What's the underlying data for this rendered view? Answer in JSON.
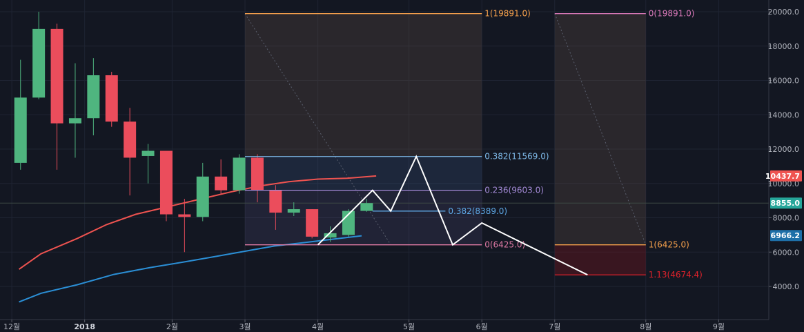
{
  "chart_data": {
    "type": "candlestick",
    "x_axis": {
      "ticks": [
        {
          "label": "12월",
          "t": -0.2
        },
        {
          "label": "2018",
          "t": 0.8,
          "bold": true
        },
        {
          "label": "2월",
          "t": 2.0
        },
        {
          "label": "3월",
          "t": 3.0
        },
        {
          "label": "4월",
          "t": 4.0
        },
        {
          "label": "5월",
          "t": 5.25
        },
        {
          "label": "6월",
          "t": 6.25
        },
        {
          "label": "7월",
          "t": 7.25
        },
        {
          "label": "8월",
          "t": 8.5
        },
        {
          "label": "9월",
          "t": 9.5
        }
      ]
    },
    "y_axis": {
      "ticks": [
        4000,
        6000,
        8000,
        10000,
        12000,
        14000,
        16000,
        18000,
        20000
      ],
      "tick_labels": [
        "4000.0",
        "6000.0",
        "8000.0",
        "10000.0",
        "12000.0",
        "14000.0",
        "16000.0",
        "18000.0",
        "20000.0"
      ],
      "ylim": [
        2000,
        20600
      ]
    },
    "candles": [
      {
        "t": -0.08,
        "o": 11200,
        "h": 17200,
        "l": 10800,
        "c": 15000
      },
      {
        "t": 0.17,
        "o": 15000,
        "h": 20000,
        "l": 14900,
        "c": 19000
      },
      {
        "t": 0.42,
        "o": 19000,
        "h": 19300,
        "l": 10800,
        "c": 13500
      },
      {
        "t": 0.67,
        "o": 13500,
        "h": 17000,
        "l": 11500,
        "c": 13800
      },
      {
        "t": 0.92,
        "o": 13800,
        "h": 17300,
        "l": 12800,
        "c": 16300
      },
      {
        "t": 1.17,
        "o": 16300,
        "h": 16500,
        "l": 13300,
        "c": 13600
      },
      {
        "t": 1.42,
        "o": 13600,
        "h": 14400,
        "l": 9300,
        "c": 11500
      },
      {
        "t": 1.67,
        "o": 11600,
        "h": 12300,
        "l": 10000,
        "c": 11900
      },
      {
        "t": 1.92,
        "o": 11900,
        "h": 11900,
        "l": 7800,
        "c": 8200
      },
      {
        "t": 2.17,
        "o": 8200,
        "h": 9100,
        "l": 6000,
        "c": 8050
      },
      {
        "t": 2.42,
        "o": 8050,
        "h": 11200,
        "l": 7800,
        "c": 10400
      },
      {
        "t": 2.67,
        "o": 10400,
        "h": 11400,
        "l": 9400,
        "c": 9600
      },
      {
        "t": 2.92,
        "o": 9600,
        "h": 11700,
        "l": 9400,
        "c": 11500
      },
      {
        "t": 3.17,
        "o": 11500,
        "h": 11700,
        "l": 8900,
        "c": 9600
      },
      {
        "t": 3.42,
        "o": 9600,
        "h": 9900,
        "l": 7300,
        "c": 8300
      },
      {
        "t": 3.67,
        "o": 8300,
        "h": 8900,
        "l": 8100,
        "c": 8500
      },
      {
        "t": 3.92,
        "o": 8500,
        "h": 8500,
        "l": 6800,
        "c": 6900
      },
      {
        "t": 4.17,
        "o": 6850,
        "h": 7500,
        "l": 6600,
        "c": 7100
      },
      {
        "t": 4.42,
        "o": 7000,
        "h": 8500,
        "l": 6900,
        "c": 8400
      },
      {
        "t": 4.67,
        "o": 8400,
        "h": 9100,
        "l": 8350,
        "c": 8855
      }
    ],
    "moving_averages": [
      {
        "color": "#ef5350",
        "points": [
          [
            -0.1,
            5000
          ],
          [
            0.2,
            5900
          ],
          [
            0.7,
            6800
          ],
          [
            1.1,
            7600
          ],
          [
            1.5,
            8200
          ],
          [
            2.0,
            8700
          ],
          [
            2.4,
            9100
          ],
          [
            2.8,
            9500
          ],
          [
            3.2,
            9850
          ],
          [
            3.6,
            10100
          ],
          [
            4.0,
            10250
          ],
          [
            4.4,
            10300
          ],
          [
            4.8,
            10437.7
          ]
        ]
      },
      {
        "color": "#2b8fd6",
        "points": [
          [
            -0.1,
            3100
          ],
          [
            0.2,
            3600
          ],
          [
            0.7,
            4100
          ],
          [
            1.2,
            4700
          ],
          [
            1.7,
            5100
          ],
          [
            2.2,
            5450
          ],
          [
            2.6,
            5750
          ],
          [
            3.0,
            6050
          ],
          [
            3.4,
            6350
          ],
          [
            3.8,
            6550
          ],
          [
            4.2,
            6750
          ],
          [
            4.6,
            6950
          ]
        ]
      }
    ],
    "fib_zones": [
      {
        "t0": 3.0,
        "t1": 6.25,
        "top": 19891,
        "bottom": 11569,
        "fill": "rgba(104,82,72,0.28)"
      },
      {
        "t0": 3.0,
        "t1": 6.25,
        "top": 11569,
        "bottom": 9603,
        "fill": "rgba(70,100,150,0.22)"
      },
      {
        "t0": 3.0,
        "t1": 6.25,
        "top": 9603,
        "bottom": 6425,
        "fill": "rgba(110,100,160,0.16)"
      },
      {
        "t0": 7.25,
        "t1": 8.5,
        "top": 19891,
        "bottom": 6425,
        "fill": "rgba(104,82,72,0.28)"
      },
      {
        "t0": 7.25,
        "t1": 8.5,
        "top": 6425,
        "bottom": 4674.4,
        "fill": "rgba(130,20,30,0.35)"
      }
    ],
    "fib_levels": [
      {
        "label": "1(19891.0)",
        "value": 19891,
        "t0": 3.0,
        "t1": 6.25,
        "color": "#f6a14c"
      },
      {
        "label": "0.382(11569.0)",
        "value": 11569,
        "t0": 3.0,
        "t1": 6.25,
        "color": "#7eb9e8"
      },
      {
        "label": "0.236(9603.0)",
        "value": 9603,
        "t0": 3.0,
        "t1": 6.25,
        "color": "#a38ad6"
      },
      {
        "label": "0.382(8389.0)",
        "value": 8389,
        "t0": 4.75,
        "t1": 5.75,
        "color": "#5ea8e6"
      },
      {
        "label": "0(6425.0)",
        "value": 6425,
        "t0": 3.0,
        "t1": 6.25,
        "color": "#e07aa5"
      },
      {
        "label": "0(19891.0)",
        "value": 19891,
        "t0": 7.25,
        "t1": 8.5,
        "color": "#d878b8"
      },
      {
        "label": "1(6425.0)",
        "value": 6425,
        "t0": 7.25,
        "t1": 8.5,
        "color": "#f6a14c"
      },
      {
        "label": "1.13(4674.4)",
        "value": 4674.4,
        "t0": 7.25,
        "t1": 8.5,
        "color": "#e0222b"
      }
    ],
    "diagonals": [
      {
        "from": [
          3.0,
          19891
        ],
        "to": [
          5.0,
          6425
        ]
      },
      {
        "from": [
          7.25,
          19891
        ],
        "to": [
          8.5,
          6425
        ]
      }
    ],
    "projection_path": [
      [
        4.0,
        6425
      ],
      [
        4.75,
        9600
      ],
      [
        5.0,
        8389
      ],
      [
        5.35,
        11569
      ],
      [
        5.85,
        6425
      ],
      [
        6.25,
        7700
      ],
      [
        7.7,
        4674.4
      ]
    ],
    "horizontal_line": {
      "value": 8855,
      "color": "#3d4a45"
    },
    "price_badges": [
      {
        "text": "10437.7",
        "value": 10437.7,
        "bg": "#ef5350"
      },
      {
        "text": "8855.0",
        "value": 8855,
        "bg": "#26a69a"
      },
      {
        "text": "6966.2",
        "value": 6966.2,
        "bg": "#1e6fa8"
      }
    ],
    "colors": {
      "up": "#4fb57f",
      "down": "#eb4d5c",
      "background": "#131722",
      "grid": "#1f2433",
      "projection": "#ffffff"
    }
  }
}
